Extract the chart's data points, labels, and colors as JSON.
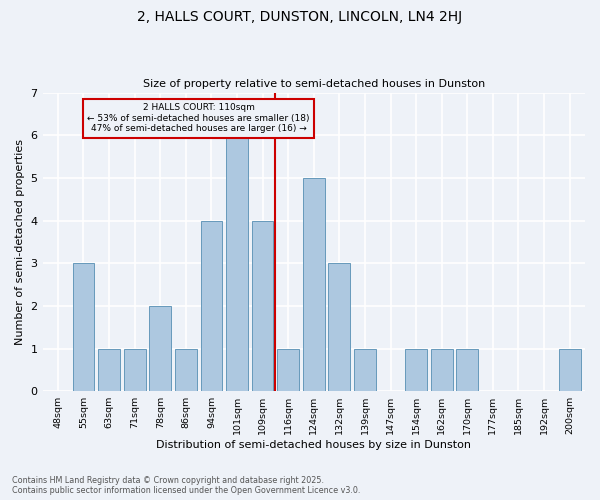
{
  "title1": "2, HALLS COURT, DUNSTON, LINCOLN, LN4 2HJ",
  "title2": "Size of property relative to semi-detached houses in Dunston",
  "xlabel": "Distribution of semi-detached houses by size in Dunston",
  "ylabel": "Number of semi-detached properties",
  "categories": [
    "48sqm",
    "55sqm",
    "63sqm",
    "71sqm",
    "78sqm",
    "86sqm",
    "94sqm",
    "101sqm",
    "109sqm",
    "116sqm",
    "124sqm",
    "132sqm",
    "139sqm",
    "147sqm",
    "154sqm",
    "162sqm",
    "170sqm",
    "177sqm",
    "185sqm",
    "192sqm",
    "200sqm"
  ],
  "values": [
    0,
    3,
    1,
    1,
    2,
    1,
    4,
    6,
    4,
    1,
    5,
    3,
    1,
    0,
    1,
    1,
    1,
    0,
    0,
    0,
    1
  ],
  "bar_color": "#adc8e0",
  "bar_edge_color": "#6699bb",
  "property_label": "2 HALLS COURT: 110sqm",
  "smaller_pct": 53,
  "smaller_n": 18,
  "larger_pct": 47,
  "larger_n": 16,
  "vline_x_index": 8.5,
  "annotation_box_color": "#cc0000",
  "background_color": "#eef2f8",
  "grid_color": "#ffffff",
  "ylim": [
    0,
    7
  ],
  "yticks": [
    0,
    1,
    2,
    3,
    4,
    5,
    6,
    7
  ],
  "footer1": "Contains HM Land Registry data © Crown copyright and database right 2025.",
  "footer2": "Contains public sector information licensed under the Open Government Licence v3.0."
}
